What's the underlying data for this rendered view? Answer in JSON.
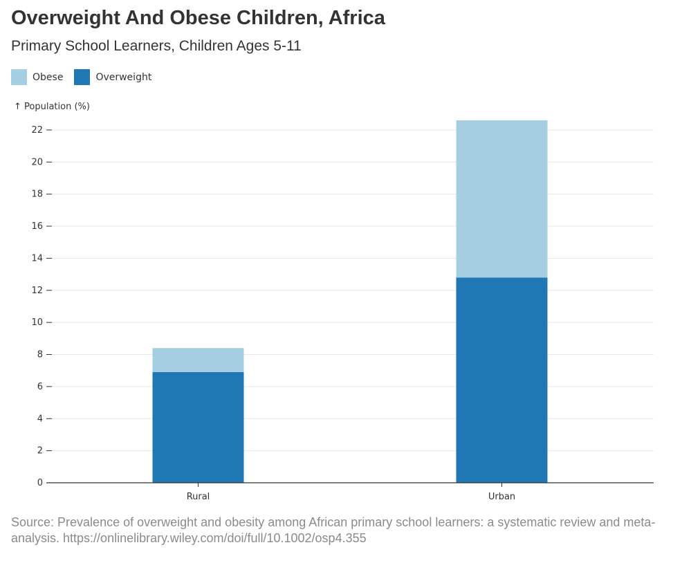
{
  "title": "Overweight And Obese Children, Africa",
  "subtitle": "Primary School Learners, Children Ages 5-11",
  "source": "Source: Prevalence of overweight and obesity among African primary school learners: a systematic review and meta-analysis. https://onlinelibrary.wiley.com/doi/full/10.1002/osp4.355",
  "legend": [
    {
      "label": "Obese",
      "color": "#a6cee3"
    },
    {
      "label": "Overweight",
      "color": "#1f78b4"
    }
  ],
  "chart_data": {
    "type": "bar",
    "stacked": true,
    "categories": [
      "Rural",
      "Urban"
    ],
    "series": [
      {
        "name": "Overweight",
        "color": "#1f78b4",
        "values": [
          6.9,
          12.8
        ]
      },
      {
        "name": "Obese",
        "color": "#a6cee3",
        "values": [
          1.5,
          9.8
        ]
      }
    ],
    "ylabel": "↑ Population (%)",
    "ylim": [
      0,
      22.6
    ],
    "yticks": [
      0,
      2,
      4,
      6,
      8,
      10,
      12,
      14,
      16,
      18,
      20,
      22
    ],
    "grid": true,
    "legend_position": "top-left"
  }
}
